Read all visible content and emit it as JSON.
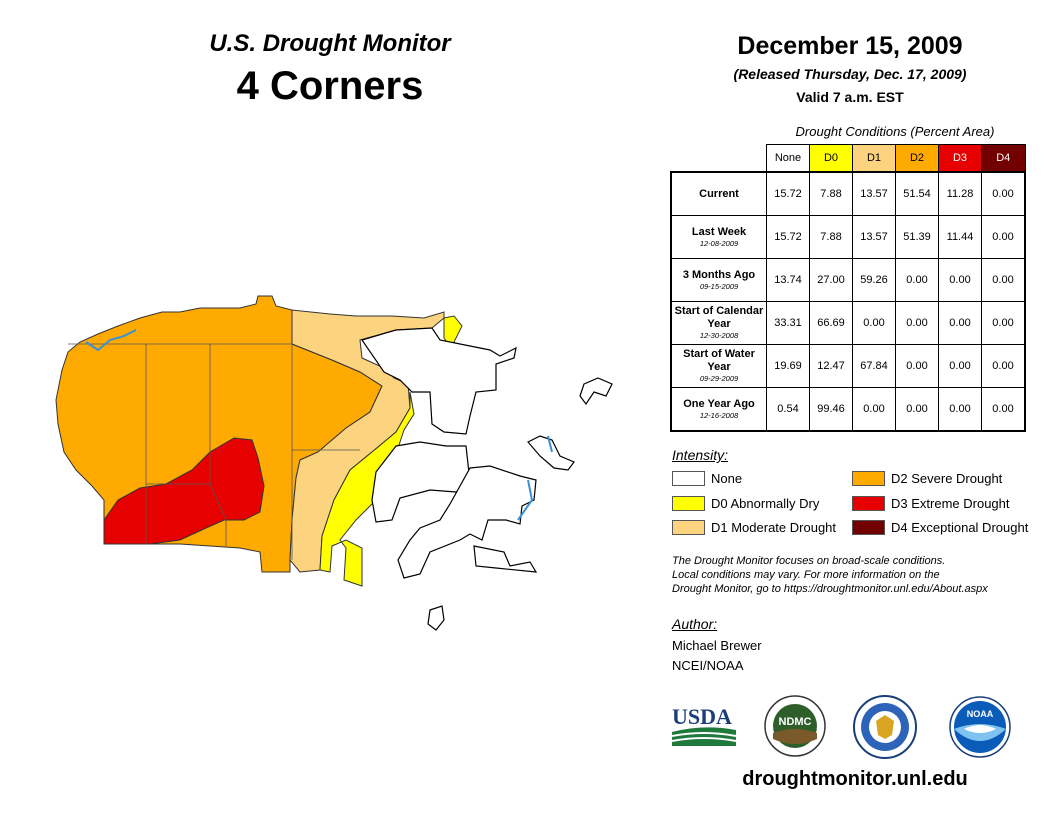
{
  "header": {
    "map_title": "U.S. Drought Monitor",
    "region": "4 Corners",
    "date": "December 15, 2009",
    "released": "(Released Thursday, Dec. 17, 2009)",
    "valid": "Valid 7 a.m. EST"
  },
  "table": {
    "caption": "Drought Conditions (Percent Area)",
    "columns": [
      {
        "label": "None",
        "color": "#ffffff",
        "text_color": "#000000"
      },
      {
        "label": "D0",
        "color": "#ffff00",
        "text_color": "#000000"
      },
      {
        "label": "D1",
        "color": "#fcd37f",
        "text_color": "#000000"
      },
      {
        "label": "D2",
        "color": "#ffaa00",
        "text_color": "#000000"
      },
      {
        "label": "D3",
        "color": "#e60000",
        "text_color": "#ffffff"
      },
      {
        "label": "D4",
        "color": "#730000",
        "text_color": "#ffffff"
      }
    ],
    "rows": [
      {
        "label": "Current",
        "date": "",
        "values": [
          "15.72",
          "7.88",
          "13.57",
          "51.54",
          "11.28",
          "0.00"
        ]
      },
      {
        "label": "Last Week",
        "date": "12-08-2009",
        "values": [
          "15.72",
          "7.88",
          "13.57",
          "51.39",
          "11.44",
          "0.00"
        ]
      },
      {
        "label": "3 Months Ago",
        "date": "09-15-2009",
        "values": [
          "13.74",
          "27.00",
          "59.26",
          "0.00",
          "0.00",
          "0.00"
        ]
      },
      {
        "label": "Start of Calendar Year",
        "date": "12-30-2008",
        "values": [
          "33.31",
          "66.69",
          "0.00",
          "0.00",
          "0.00",
          "0.00"
        ]
      },
      {
        "label": "Start of Water Year",
        "date": "09-29-2009",
        "values": [
          "19.69",
          "12.47",
          "67.84",
          "0.00",
          "0.00",
          "0.00"
        ]
      },
      {
        "label": "One Year Ago",
        "date": "12-16-2008",
        "values": [
          "0.54",
          "99.46",
          "0.00",
          "0.00",
          "0.00",
          "0.00"
        ]
      }
    ]
  },
  "legend": {
    "heading": "Intensity:",
    "items": [
      {
        "label": "None",
        "color": "#ffffff"
      },
      {
        "label": "D0 Abnormally Dry",
        "color": "#ffff00"
      },
      {
        "label": "D1 Moderate Drought",
        "color": "#fcd37f"
      },
      {
        "label": "D2 Severe Drought",
        "color": "#ffaa00"
      },
      {
        "label": "D3 Extreme Drought",
        "color": "#e60000"
      },
      {
        "label": "D4 Exceptional Drought",
        "color": "#730000"
      }
    ]
  },
  "note": {
    "line1": "The Drought Monitor focuses on broad-scale conditions.",
    "line2": "Local conditions may vary. For more information on the",
    "line3": "Drought Monitor, go to https://droughtmonitor.unl.edu/About.aspx"
  },
  "author": {
    "heading": "Author:",
    "name": "Michael Brewer",
    "org": "NCEI/NOAA"
  },
  "logos": {
    "usda": "USDA",
    "ndmc": "NDMC",
    "noaa": "NOAA"
  },
  "footer": {
    "website": "droughtmonitor.unl.edu"
  },
  "map_colors": {
    "none": "#ffffff",
    "d0": "#ffff00",
    "d1": "#fcd37f",
    "d2": "#ffaa00",
    "d3": "#e60000",
    "water": "#3b8fd6"
  }
}
